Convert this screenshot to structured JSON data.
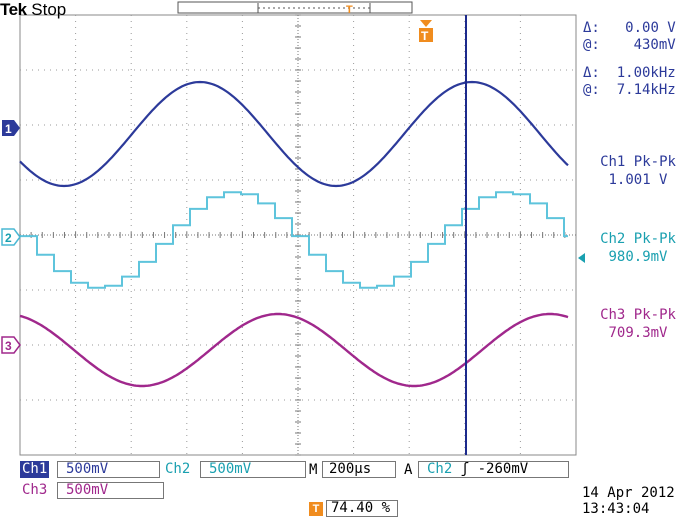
{
  "header": {
    "brand": "Tek",
    "state": "Stop",
    "trigger_marker": "T"
  },
  "cursors": {
    "delta_label": "Δ:",
    "delta_value": "0.00 V",
    "at_label": "@:",
    "at_value": "430mV",
    "delta2_label": "Δ:",
    "delta2_value": "1.00kHz",
    "at2_label": "@:",
    "at2_value": "7.14kHz"
  },
  "measurements": [
    {
      "label": "Ch1 Pk-Pk",
      "value": "1.001 V",
      "color": "#2c3a9a"
    },
    {
      "label": "Ch2 Pk-Pk",
      "value": "980.9mV",
      "color": "#1aa0b0"
    },
    {
      "label": "Ch3 Pk-Pk",
      "value": "709.3mV",
      "color": "#a0288c"
    }
  ],
  "channels": {
    "ch1": {
      "marker": "1",
      "label": "Ch1",
      "scale": "500mV",
      "color": "#2c3a9a"
    },
    "ch2": {
      "marker": "2",
      "label": "Ch2",
      "scale": "500mV",
      "color": "#4ab8d4"
    },
    "ch3": {
      "marker": "3",
      "label": "Ch3",
      "scale": "500mV",
      "color": "#a0288c"
    }
  },
  "timebase": {
    "label": "M",
    "value": "200µs"
  },
  "trigger": {
    "mode": "A",
    "source": "Ch2",
    "slope": "ʃ",
    "level": "-260mV",
    "position_marker": "T",
    "position": "74.40 %"
  },
  "datetime": {
    "date": "14 Apr 2012",
    "time": "13:43:04"
  },
  "colors": {
    "grid": "#9a9a9a",
    "cursor": "#1c2a8c",
    "trigger_orange": "#f08c1e"
  }
}
